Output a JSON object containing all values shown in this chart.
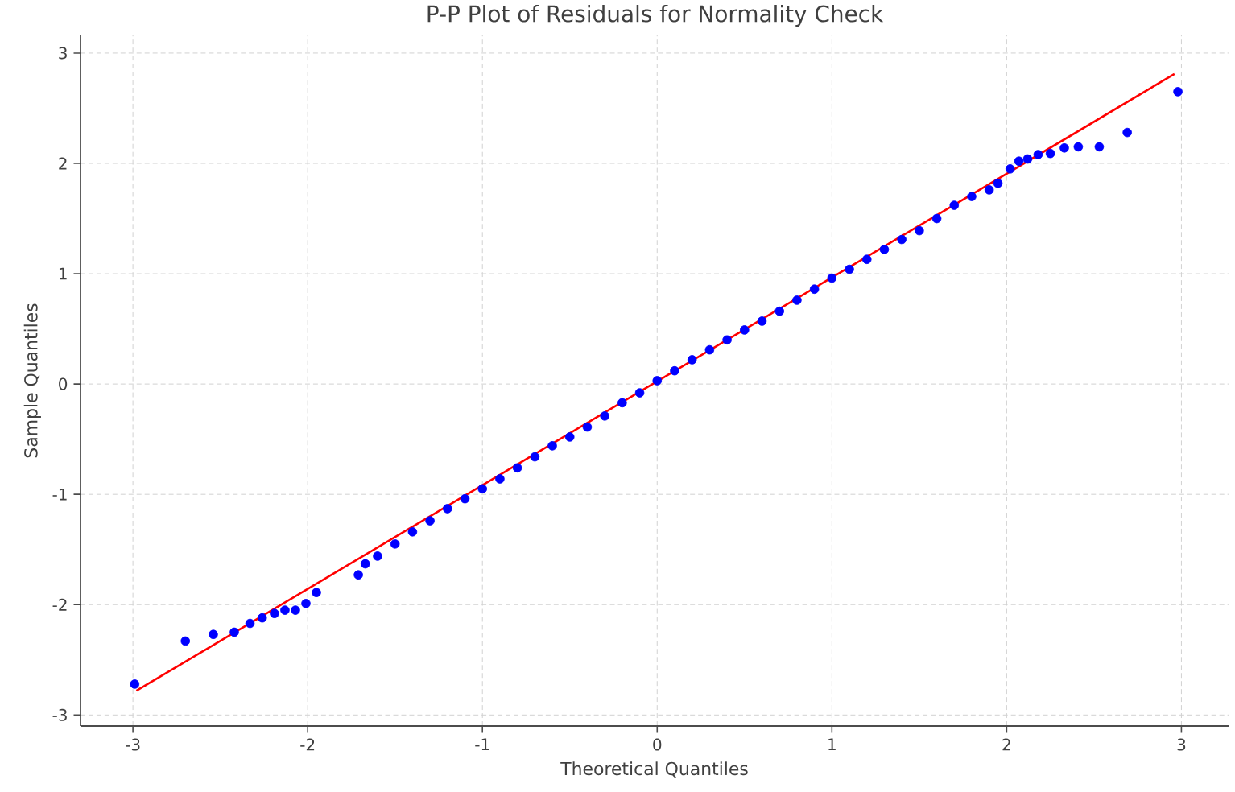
{
  "chart_data": {
    "type": "scatter",
    "title": "P-P Plot of Residuals for Normality Check",
    "xlabel": "Theoretical Quantiles",
    "ylabel": "Sample Quantiles",
    "xlim": [
      -3.3,
      3.27
    ],
    "ylim": [
      -3.1,
      3.16
    ],
    "xticks": [
      -3,
      -2,
      -1,
      0,
      1,
      2,
      3
    ],
    "yticks": [
      -3,
      -2,
      -1,
      0,
      1,
      2,
      3
    ],
    "grid": true,
    "series": [
      {
        "color": "#0000ff",
        "marker": "circle",
        "x": [
          -2.99,
          -2.7,
          -2.54,
          -2.42,
          -2.33,
          -2.26,
          -2.19,
          -2.13,
          -2.07,
          -2.01,
          -1.95,
          -1.71,
          -1.67,
          -1.6,
          -1.5,
          -1.4,
          -1.3,
          -1.2,
          -1.1,
          -1.0,
          -0.9,
          -0.8,
          -0.7,
          -0.6,
          -0.5,
          -0.4,
          -0.3,
          -0.2,
          -0.1,
          0,
          0.1,
          0.2,
          0.3,
          0.4,
          0.5,
          0.6,
          0.7,
          0.8,
          0.9,
          1.0,
          1.1,
          1.2,
          1.3,
          1.4,
          1.5,
          1.6,
          1.7,
          1.8,
          1.9,
          1.95,
          2.02,
          2.07,
          2.12,
          2.18,
          2.25,
          2.33,
          2.41,
          2.53,
          2.69,
          2.98
        ],
        "values": [
          -2.72,
          -2.33,
          -2.27,
          -2.25,
          -2.17,
          -2.12,
          -2.08,
          -2.05,
          -2.05,
          -1.99,
          -1.89,
          -1.73,
          -1.63,
          -1.56,
          -1.45,
          -1.34,
          -1.24,
          -1.13,
          -1.04,
          -0.95,
          -0.86,
          -0.76,
          -0.66,
          -0.56,
          -0.48,
          -0.39,
          -0.29,
          -0.17,
          -0.08,
          0.03,
          0.12,
          0.22,
          0.31,
          0.4,
          0.49,
          0.57,
          0.66,
          0.76,
          0.86,
          0.96,
          1.04,
          1.13,
          1.22,
          1.31,
          1.39,
          1.5,
          1.62,
          1.7,
          1.76,
          1.82,
          1.95,
          2.02,
          2.04,
          2.08,
          2.09,
          2.14,
          2.15,
          2.15,
          2.28,
          2.65
        ]
      },
      {
        "type": "line",
        "color": "#ff0000",
        "marker": "none",
        "x": [
          -2.98,
          2.96
        ],
        "values": [
          -2.78,
          2.81
        ]
      }
    ]
  }
}
